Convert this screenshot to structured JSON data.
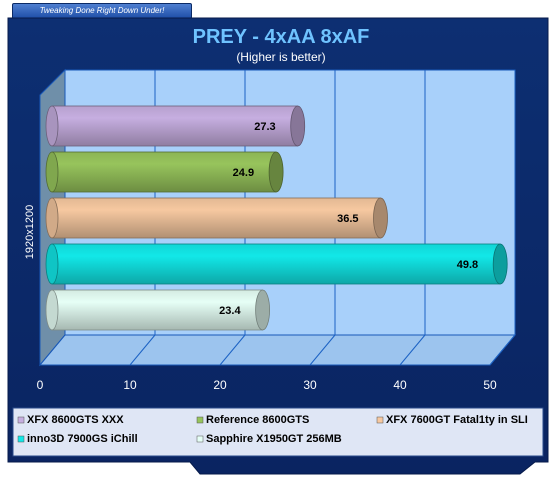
{
  "banner": "Tweaking Done Right Down Under!",
  "chart_data": {
    "type": "bar",
    "orientation": "horizontal",
    "title": "PREY - 4xAA 8xAF",
    "subtitle": "(Higher is better)",
    "category_label": "1920x1200",
    "xlim": [
      0,
      50
    ],
    "xticks": [
      0,
      10,
      20,
      30,
      40,
      50
    ],
    "grid": true,
    "legend_position": "bottom",
    "series": [
      {
        "name": "XFX 8600GTS XXX",
        "value": 27.3,
        "color": "#c6aee0"
      },
      {
        "name": "Reference 8600GTS",
        "value": 24.9,
        "color": "#97c45c"
      },
      {
        "name": "XFX 7600GT Fatal1ty in SLI",
        "value": 36.5,
        "color": "#f6c8a0"
      },
      {
        "name": "inno3D 7900GS iChill",
        "value": 49.8,
        "color": "#12e8e8"
      },
      {
        "name": "Sapphire X1950GT 256MB",
        "value": 23.4,
        "color": "#e6fff6"
      }
    ]
  }
}
